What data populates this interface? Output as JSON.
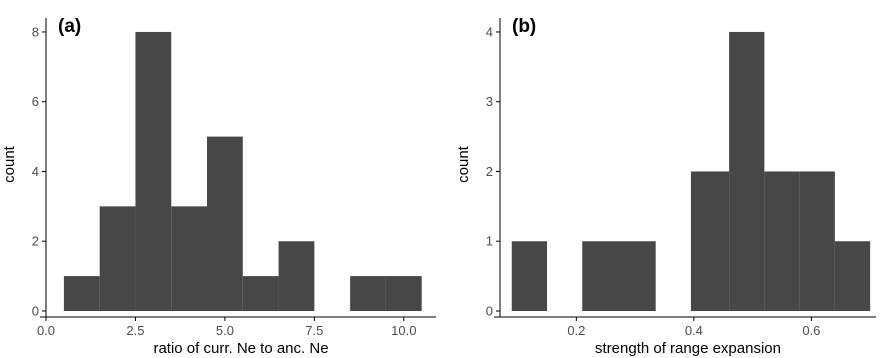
{
  "chart_data": [
    {
      "type": "histogram",
      "panel_label": "(a)",
      "xlabel": "ratio of curr. Ne to anc. Ne",
      "ylabel": "count",
      "xlim": [
        0.0,
        10.9
      ],
      "ylim": [
        0,
        8.4
      ],
      "x_ticks": [
        0,
        2.5,
        5,
        7.5,
        10
      ],
      "x_tick_labels": [
        "0.0",
        "2.5",
        "5.0",
        "7.5",
        "10.0"
      ],
      "y_ticks": [
        0,
        2,
        4,
        6,
        8
      ],
      "y_tick_labels": [
        "0",
        "2",
        "4",
        "6",
        "8"
      ],
      "bins": [
        {
          "x0": 0.5,
          "x1": 1.5,
          "count": 1
        },
        {
          "x0": 1.5,
          "x1": 2.5,
          "count": 3
        },
        {
          "x0": 2.5,
          "x1": 3.5,
          "count": 8
        },
        {
          "x0": 3.5,
          "x1": 4.5,
          "count": 3
        },
        {
          "x0": 4.5,
          "x1": 5.5,
          "count": 5
        },
        {
          "x0": 5.5,
          "x1": 6.5,
          "count": 1
        },
        {
          "x0": 6.5,
          "x1": 7.5,
          "count": 2
        },
        {
          "x0": 7.5,
          "x1": 8.5,
          "count": 0
        },
        {
          "x0": 8.5,
          "x1": 9.5,
          "count": 1
        },
        {
          "x0": 9.5,
          "x1": 10.5,
          "count": 1
        }
      ],
      "bar_color": "#474747",
      "grid": false
    },
    {
      "type": "histogram",
      "panel_label": "(b)",
      "xlabel": "strength of range expansion",
      "ylabel": "count",
      "xlim": [
        0.07,
        0.71
      ],
      "ylim": [
        0,
        4.2
      ],
      "x_ticks": [
        0.2,
        0.4,
        0.6
      ],
      "x_tick_labels": [
        "0.2",
        "0.4",
        "0.6"
      ],
      "y_ticks": [
        0,
        1,
        2,
        3,
        4
      ],
      "y_tick_labels": [
        "0",
        "1",
        "2",
        "3",
        "4"
      ],
      "bins": [
        {
          "x0": 0.09,
          "x1": 0.15,
          "count": 1
        },
        {
          "x0": 0.15,
          "x1": 0.21,
          "count": 0
        },
        {
          "x0": 0.21,
          "x1": 0.27,
          "count": 1
        },
        {
          "x0": 0.27,
          "x1": 0.335,
          "count": 1
        },
        {
          "x0": 0.335,
          "x1": 0.395,
          "count": 0
        },
        {
          "x0": 0.395,
          "x1": 0.46,
          "count": 2
        },
        {
          "x0": 0.46,
          "x1": 0.52,
          "count": 4
        },
        {
          "x0": 0.52,
          "x1": 0.58,
          "count": 2
        },
        {
          "x0": 0.58,
          "x1": 0.64,
          "count": 2
        },
        {
          "x0": 0.64,
          "x1": 0.7,
          "count": 1
        }
      ],
      "bar_color": "#474747",
      "grid": false
    }
  ]
}
